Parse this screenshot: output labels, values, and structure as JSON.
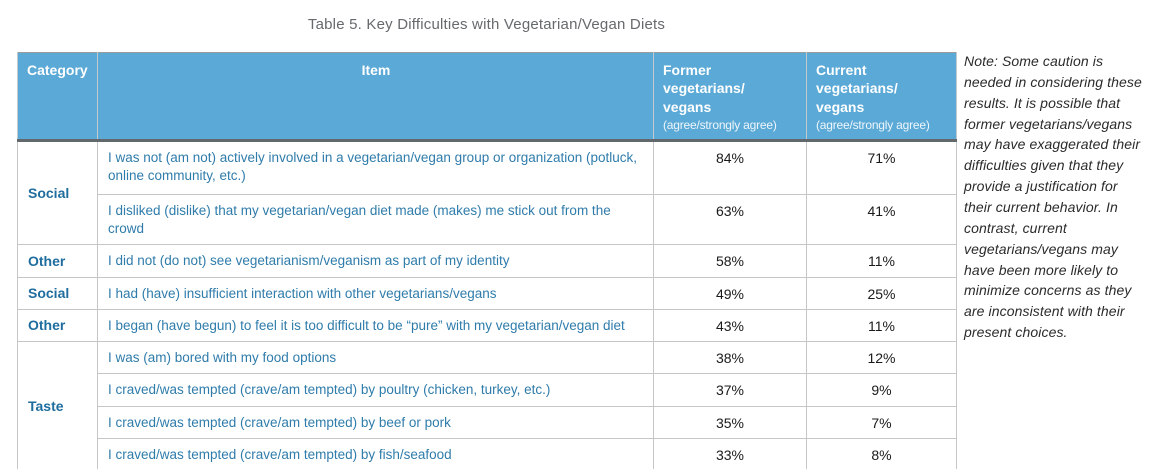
{
  "title": "Table 5. Key Difficulties with Vegetarian/Vegan Diets",
  "table": {
    "headers": {
      "category": "Category",
      "item": "Item",
      "former": {
        "main": "Former\nvegetarians/\nvegans",
        "sub": "(agree/strongly agree)"
      },
      "current": {
        "main": "Current\nvegetarians/\nvegans",
        "sub": "(agree/strongly agree)"
      }
    },
    "rows": [
      {
        "category": "Social",
        "item": "I was not (am not) actively involved in a vegetarian/vegan group or organization (potluck, online community, etc.)",
        "former": "84%",
        "current": "71%"
      },
      {
        "item": "I disliked (dislike) that my vegetarian/vegan diet made (makes) me stick out from the crowd",
        "former": "63%",
        "current": "41%"
      },
      {
        "category": "Other",
        "item": "I did not (do not) see vegetarianism/veganism as part of my identity",
        "former": "58%",
        "current": "11%"
      },
      {
        "category": "Social",
        "item": "I had (have) insufficient interaction with other vegetarians/vegans",
        "former": "49%",
        "current": "25%"
      },
      {
        "category": "Other",
        "item": "I began (have begun) to feel it is too difficult to be “pure” with my vegetarian/vegan diet",
        "former": "43%",
        "current": "11%"
      },
      {
        "category": "Taste",
        "item": "I was (am) bored with my food options",
        "former": "38%",
        "current": "12%"
      },
      {
        "item": "I craved/was tempted (crave/am tempted) by poultry (chicken, turkey, etc.)",
        "former": "37%",
        "current": "9%"
      },
      {
        "item": "I craved/was tempted (crave/am tempted) by beef or pork",
        "former": "35%",
        "current": "7%"
      },
      {
        "item": "I craved/was tempted (crave/am tempted) by fish/seafood",
        "former": "33%",
        "current": "8%"
      }
    ]
  },
  "note": "Note: Some caution is needed in considering these results. It is possible that former vegetarians/vegans may have exaggerated their difficulties given that they provide a justification for their current behavior. In contrast, current vegetarians/vegans may have been more likely to minimize concerns as they are inconsistent with their present choices."
}
